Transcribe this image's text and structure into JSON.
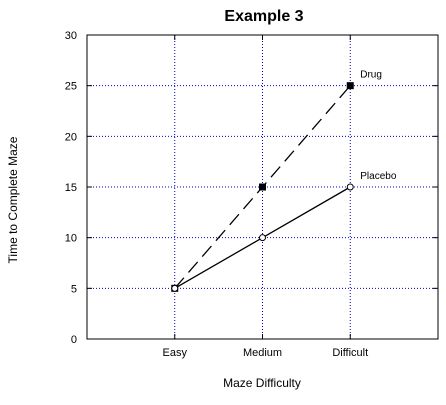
{
  "chart_data": {
    "type": "line",
    "title": "Example 3",
    "xlabel": "Maze Difficulty",
    "ylabel": "Time to Complete Maze",
    "categories": [
      "Easy",
      "Medium",
      "Difficult"
    ],
    "ylim": [
      0,
      30
    ],
    "yticks": [
      0,
      5,
      10,
      15,
      20,
      25,
      30
    ],
    "grid": true,
    "grid_color": "#0000cc",
    "series": [
      {
        "name": "Drug",
        "values": [
          5,
          15,
          25
        ],
        "line_style": "dashed",
        "marker": "filled-square",
        "color": "#000000"
      },
      {
        "name": "Placebo",
        "values": [
          5,
          10,
          15
        ],
        "line_style": "solid",
        "marker": "open-circle",
        "color": "#000000"
      }
    ]
  }
}
